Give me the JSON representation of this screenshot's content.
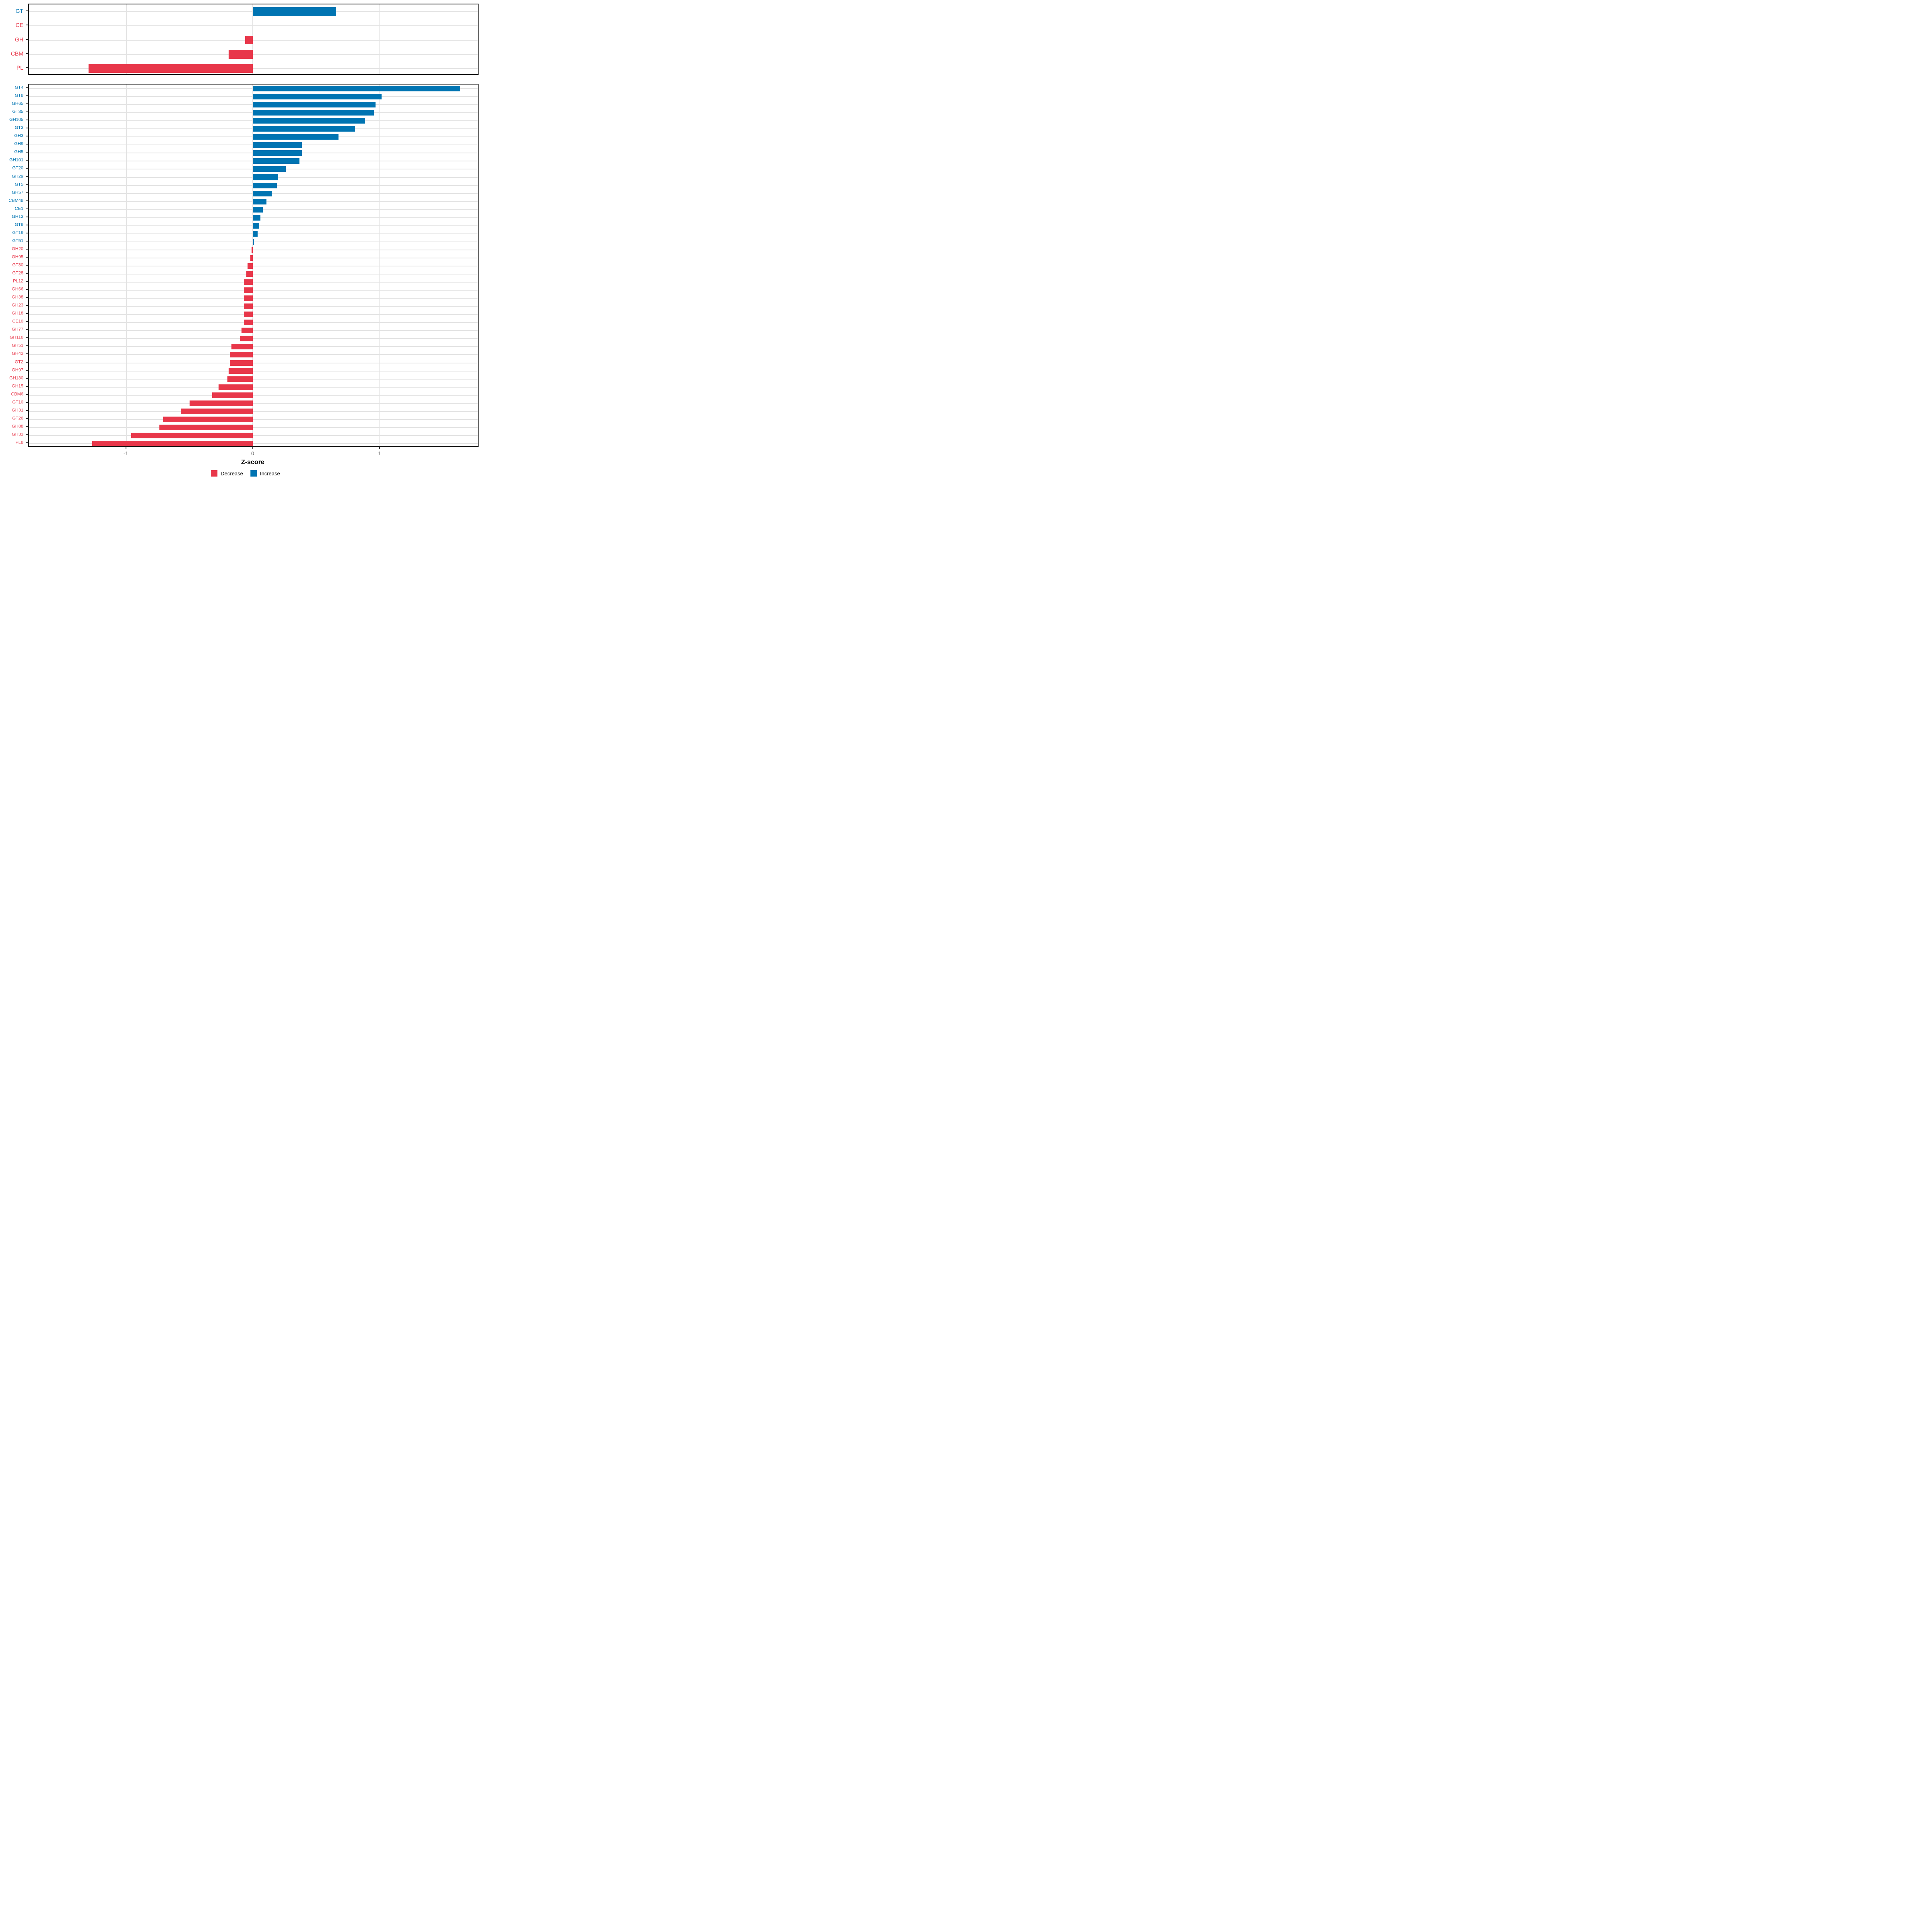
{
  "colors": {
    "increase": "#0074B2",
    "decrease": "#E8374A",
    "grid": "#E3E3E3",
    "panel_border": "#1A1A1A",
    "axis_text": "#4D4D4D",
    "tick_mark": "#333333",
    "background": "#FFFFFF"
  },
  "axis": {
    "label": "Z-score",
    "ticks": [
      "-1",
      "0",
      "1"
    ],
    "tick_values": [
      -1,
      0,
      1
    ]
  },
  "legend": {
    "items": [
      {
        "label": "Decrease",
        "color": "#E8374A"
      },
      {
        "label": "Increase",
        "color": "#0074B2"
      }
    ]
  },
  "chart_data": [
    {
      "type": "bar",
      "orientation": "horizontal",
      "panel": "cazyme-classes",
      "title": "",
      "xlabel": "Z-score",
      "xlim": [
        -1.77,
        1.78
      ],
      "xticks": [
        -1,
        0,
        1
      ],
      "grid": true,
      "legend_position": "bottom",
      "categories": [
        "GT",
        "CE",
        "GH",
        "CBM",
        "PL"
      ],
      "values": [
        0.66,
        0.0,
        -0.06,
        -0.19,
        -1.3
      ],
      "directions": [
        "increase",
        "decrease",
        "decrease",
        "decrease",
        "decrease"
      ]
    },
    {
      "type": "bar",
      "orientation": "horizontal",
      "panel": "cazyme-families",
      "title": "",
      "xlabel": "Z-score",
      "xlim": [
        -1.77,
        1.78
      ],
      "xticks": [
        -1,
        0,
        1
      ],
      "grid": true,
      "legend_position": "bottom",
      "categories": [
        "GT4",
        "GT8",
        "GH65",
        "GT35",
        "GH105",
        "GT3",
        "GH3",
        "GH9",
        "GH5",
        "GH101",
        "GT20",
        "GH29",
        "GT5",
        "GH57",
        "CBM48",
        "CE1",
        "GH13",
        "GT9",
        "GT19",
        "GT51",
        "GH20",
        "GH95",
        "GT30",
        "GT28",
        "PL12",
        "GH66",
        "GH38",
        "GH23",
        "GH18",
        "CE10",
        "GH77",
        "GH116",
        "GH51",
        "GH43",
        "GT2",
        "GH97",
        "GH130",
        "GH15",
        "CBM6",
        "GT10",
        "GH31",
        "GT26",
        "GH88",
        "GH33",
        "PL8"
      ],
      "values": [
        1.64,
        1.02,
        0.97,
        0.96,
        0.89,
        0.81,
        0.68,
        0.39,
        0.39,
        0.37,
        0.26,
        0.2,
        0.19,
        0.15,
        0.11,
        0.08,
        0.06,
        0.05,
        0.04,
        0.01,
        -0.01,
        -0.02,
        -0.04,
        -0.05,
        -0.07,
        -0.07,
        -0.07,
        -0.07,
        -0.07,
        -0.07,
        -0.09,
        -0.1,
        -0.17,
        -0.18,
        -0.18,
        -0.19,
        -0.2,
        -0.27,
        -0.32,
        -0.5,
        -0.57,
        -0.71,
        -0.74,
        -0.96,
        -1.27
      ],
      "directions": [
        "increase",
        "increase",
        "increase",
        "increase",
        "increase",
        "increase",
        "increase",
        "increase",
        "increase",
        "increase",
        "increase",
        "increase",
        "increase",
        "increase",
        "increase",
        "increase",
        "increase",
        "increase",
        "increase",
        "increase",
        "decrease",
        "decrease",
        "decrease",
        "decrease",
        "decrease",
        "decrease",
        "decrease",
        "decrease",
        "decrease",
        "decrease",
        "decrease",
        "decrease",
        "decrease",
        "decrease",
        "decrease",
        "decrease",
        "decrease",
        "decrease",
        "decrease",
        "decrease",
        "decrease",
        "decrease",
        "decrease",
        "decrease",
        "decrease"
      ]
    }
  ]
}
